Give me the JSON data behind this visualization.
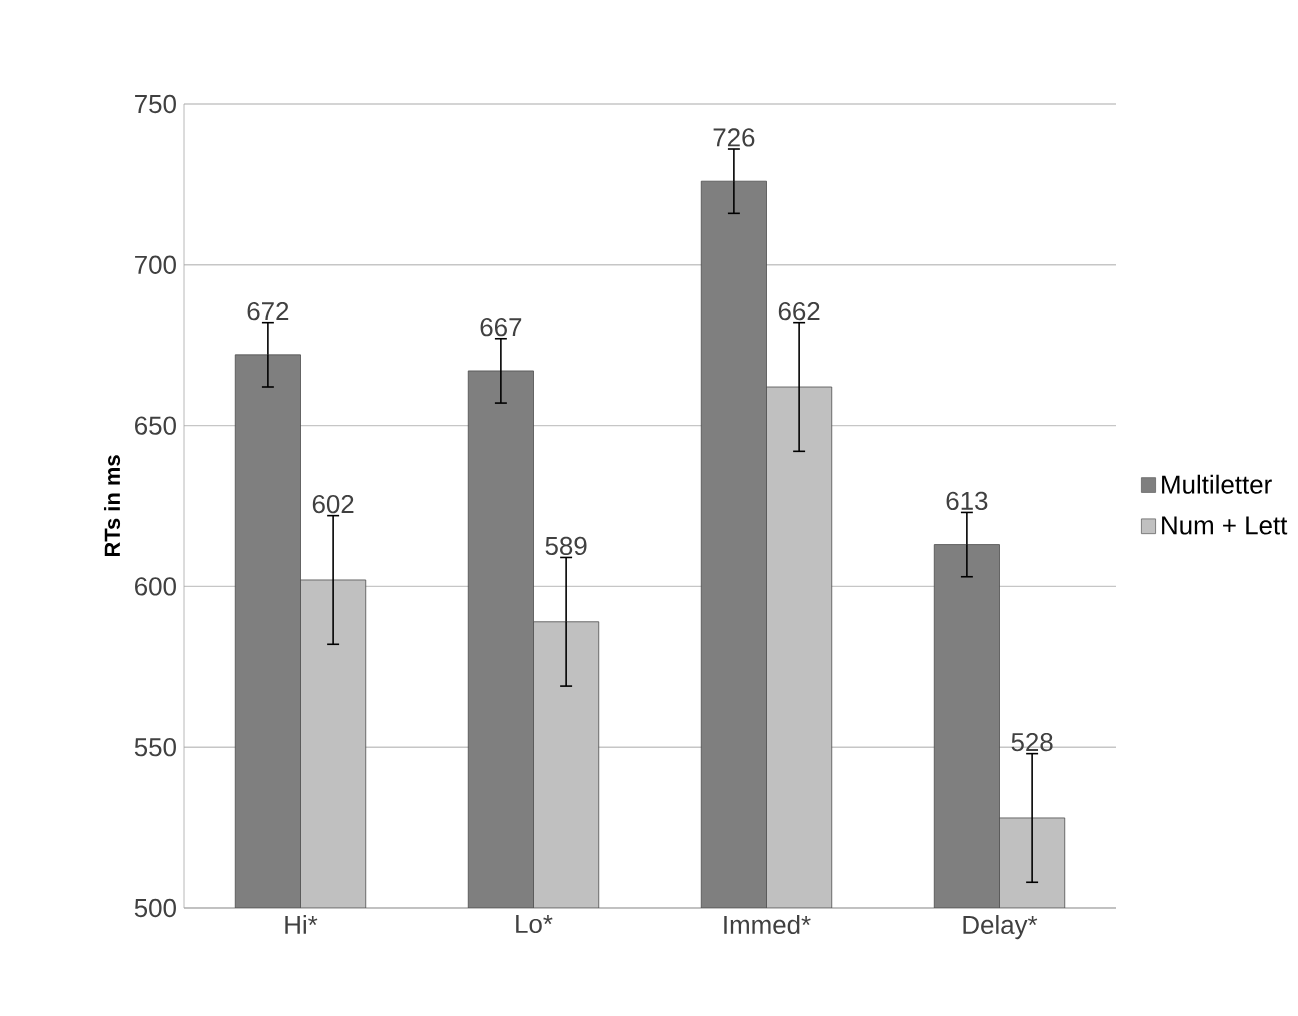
{
  "chart_data": {
    "type": "bar",
    "ylabel": "RTs in ms",
    "categories": [
      "Hi*",
      "Lo*",
      "Immed*",
      "Delay*"
    ],
    "series": [
      {
        "name": "Multiletter",
        "color": "#7f7f7f",
        "values": [
          672,
          667,
          726,
          613
        ],
        "errors": [
          10,
          10,
          10,
          10
        ]
      },
      {
        "name": "Num + Lett",
        "color": "#c0c0c0",
        "values": [
          602,
          589,
          662,
          528
        ],
        "errors": [
          20,
          20,
          20,
          20
        ]
      }
    ],
    "ylim": [
      500,
      750
    ],
    "yticks": [
      500,
      550,
      600,
      650,
      700,
      750
    ],
    "grid": "y",
    "legend": "right",
    "data_labels": true
  }
}
